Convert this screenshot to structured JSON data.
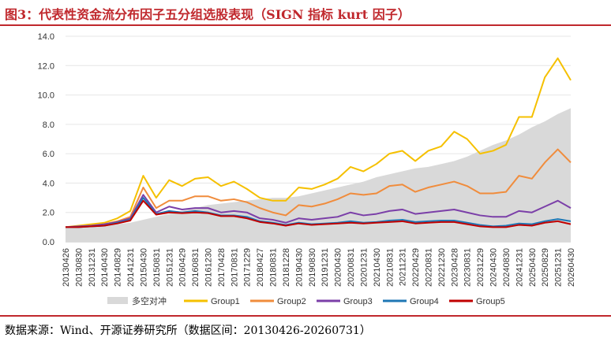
{
  "title": "图3：代表性资金流分布因子五分组选股表现（SIGN 指标 kurt 因子）",
  "source": "数据来源：Wind、开源证券研究所（数据区间：20130426-20260731）",
  "chart_data": {
    "type": "line",
    "title": "",
    "xlabel": "",
    "ylabel": "",
    "ylim": [
      0,
      14
    ],
    "yticks": [
      "0.0",
      "2.0",
      "4.0",
      "6.0",
      "8.0",
      "10.0",
      "12.0",
      "14.0"
    ],
    "xticks": [
      "20130426",
      "20130830",
      "20131231",
      "20140430",
      "20140829",
      "20141231",
      "20150430",
      "20150831",
      "20151231",
      "20160429",
      "20160831",
      "20161230",
      "20170428",
      "20170831",
      "20171229",
      "20180427",
      "20180831",
      "20181228",
      "20190430",
      "20190830",
      "20191231",
      "20200430",
      "20200831",
      "20201231",
      "20210430",
      "20210831",
      "20211231",
      "20220429",
      "20220831",
      "20221230",
      "20230428",
      "20230831",
      "20231229",
      "20240430",
      "20240830",
      "20241231",
      "20250430",
      "20250829",
      "20251231",
      "20260430"
    ],
    "legend_position": "bottom",
    "grid": "horizontal",
    "series": [
      {
        "name": "多空对冲",
        "type": "area",
        "color": "#d9d9d9",
        "values": [
          1.0,
          1.05,
          1.1,
          1.15,
          1.2,
          1.3,
          1.5,
          1.7,
          1.9,
          2.1,
          2.3,
          2.5,
          2.6,
          2.7,
          2.8,
          2.9,
          3.0,
          3.0,
          3.1,
          3.3,
          3.5,
          3.7,
          3.9,
          4.1,
          4.4,
          4.6,
          4.8,
          5.0,
          5.1,
          5.3,
          5.5,
          5.8,
          6.2,
          6.6,
          6.9,
          7.3,
          7.8,
          8.2,
          8.7,
          9.1
        ]
      },
      {
        "name": "Group1",
        "type": "line",
        "color": "#f5c000",
        "values": [
          1.0,
          1.1,
          1.2,
          1.3,
          1.6,
          2.1,
          4.5,
          3.0,
          4.2,
          3.8,
          4.3,
          4.4,
          3.8,
          4.1,
          3.6,
          3.0,
          2.8,
          2.8,
          3.7,
          3.6,
          3.9,
          4.3,
          5.1,
          4.8,
          5.3,
          6.0,
          6.2,
          5.5,
          6.2,
          6.5,
          7.5,
          7.0,
          6.0,
          6.2,
          6.6,
          8.5,
          8.5,
          11.2,
          12.5,
          11.0
        ]
      },
      {
        "name": "Group2",
        "type": "line",
        "color": "#f08c3c",
        "values": [
          1.0,
          1.05,
          1.1,
          1.2,
          1.4,
          1.7,
          3.7,
          2.3,
          2.8,
          2.8,
          3.1,
          3.1,
          2.8,
          2.9,
          2.7,
          2.3,
          2.0,
          1.8,
          2.5,
          2.4,
          2.6,
          2.9,
          3.3,
          3.2,
          3.3,
          3.8,
          3.9,
          3.4,
          3.7,
          3.9,
          4.1,
          3.8,
          3.3,
          3.3,
          3.4,
          4.5,
          4.3,
          5.4,
          6.3,
          5.4
        ]
      },
      {
        "name": "Group3",
        "type": "line",
        "color": "#7b3fa8",
        "values": [
          1.0,
          1.05,
          1.1,
          1.2,
          1.35,
          1.6,
          3.2,
          2.0,
          2.4,
          2.2,
          2.3,
          2.3,
          2.0,
          2.1,
          2.0,
          1.6,
          1.5,
          1.3,
          1.6,
          1.5,
          1.6,
          1.7,
          2.0,
          1.8,
          1.9,
          2.1,
          2.2,
          1.9,
          2.0,
          2.1,
          2.2,
          2.0,
          1.8,
          1.7,
          1.7,
          2.1,
          2.0,
          2.4,
          2.8,
          2.3
        ]
      },
      {
        "name": "Group4",
        "type": "line",
        "color": "#1f77b4",
        "values": [
          1.0,
          1.0,
          1.05,
          1.1,
          1.3,
          1.5,
          3.0,
          1.9,
          2.1,
          2.0,
          2.1,
          2.0,
          1.8,
          1.8,
          1.7,
          1.4,
          1.3,
          1.15,
          1.3,
          1.2,
          1.25,
          1.3,
          1.4,
          1.3,
          1.35,
          1.45,
          1.5,
          1.35,
          1.4,
          1.45,
          1.45,
          1.3,
          1.15,
          1.05,
          1.1,
          1.25,
          1.2,
          1.4,
          1.55,
          1.4
        ]
      },
      {
        "name": "Group5",
        "type": "line",
        "color": "#c00000",
        "values": [
          1.0,
          1.0,
          1.05,
          1.1,
          1.25,
          1.45,
          2.8,
          1.85,
          2.0,
          1.95,
          2.0,
          1.95,
          1.75,
          1.75,
          1.6,
          1.35,
          1.25,
          1.1,
          1.25,
          1.15,
          1.2,
          1.25,
          1.3,
          1.25,
          1.3,
          1.35,
          1.4,
          1.25,
          1.3,
          1.35,
          1.35,
          1.2,
          1.05,
          1.0,
          1.0,
          1.15,
          1.1,
          1.3,
          1.4,
          1.2
        ]
      }
    ]
  }
}
